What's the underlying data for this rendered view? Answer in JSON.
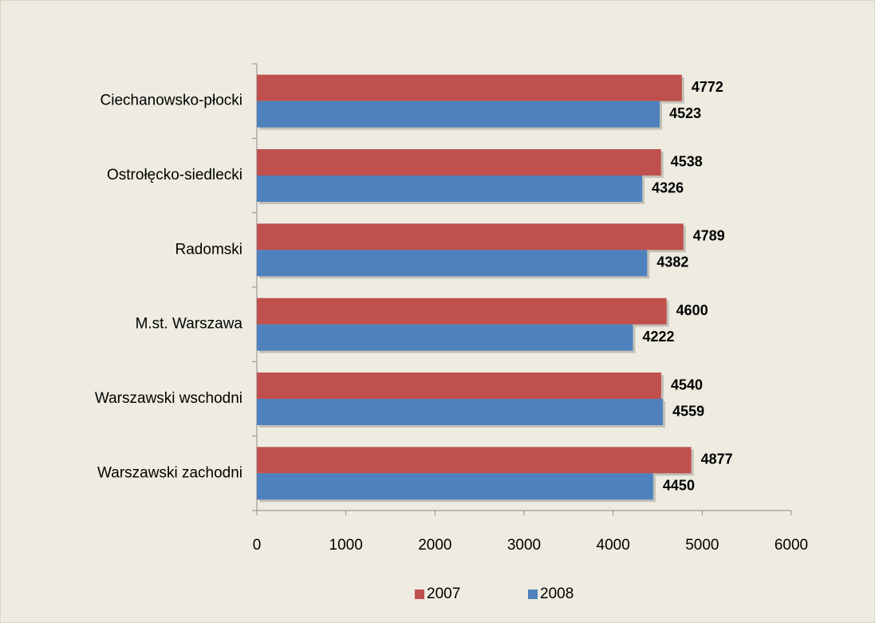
{
  "chart_data": {
    "type": "bar",
    "orientation": "horizontal",
    "categories": [
      "Ciechanowsko-płocki",
      "Ostrołęcko-siedlecki",
      "Radomski",
      "M.st. Warszawa",
      "Warszawski wschodni",
      "Warszawski zachodni"
    ],
    "series": [
      {
        "name": "2007",
        "color": "#c0504d",
        "values": [
          4772,
          4538,
          4789,
          4600,
          4540,
          4877
        ]
      },
      {
        "name": "2008",
        "color": "#4f81bd",
        "values": [
          4523,
          4326,
          4382,
          4222,
          4559,
          4450
        ]
      }
    ],
    "xlim": [
      0,
      6000
    ],
    "xticks": [
      0,
      1000,
      2000,
      3000,
      4000,
      5000,
      6000
    ],
    "grid": false,
    "legend": "bottom"
  }
}
